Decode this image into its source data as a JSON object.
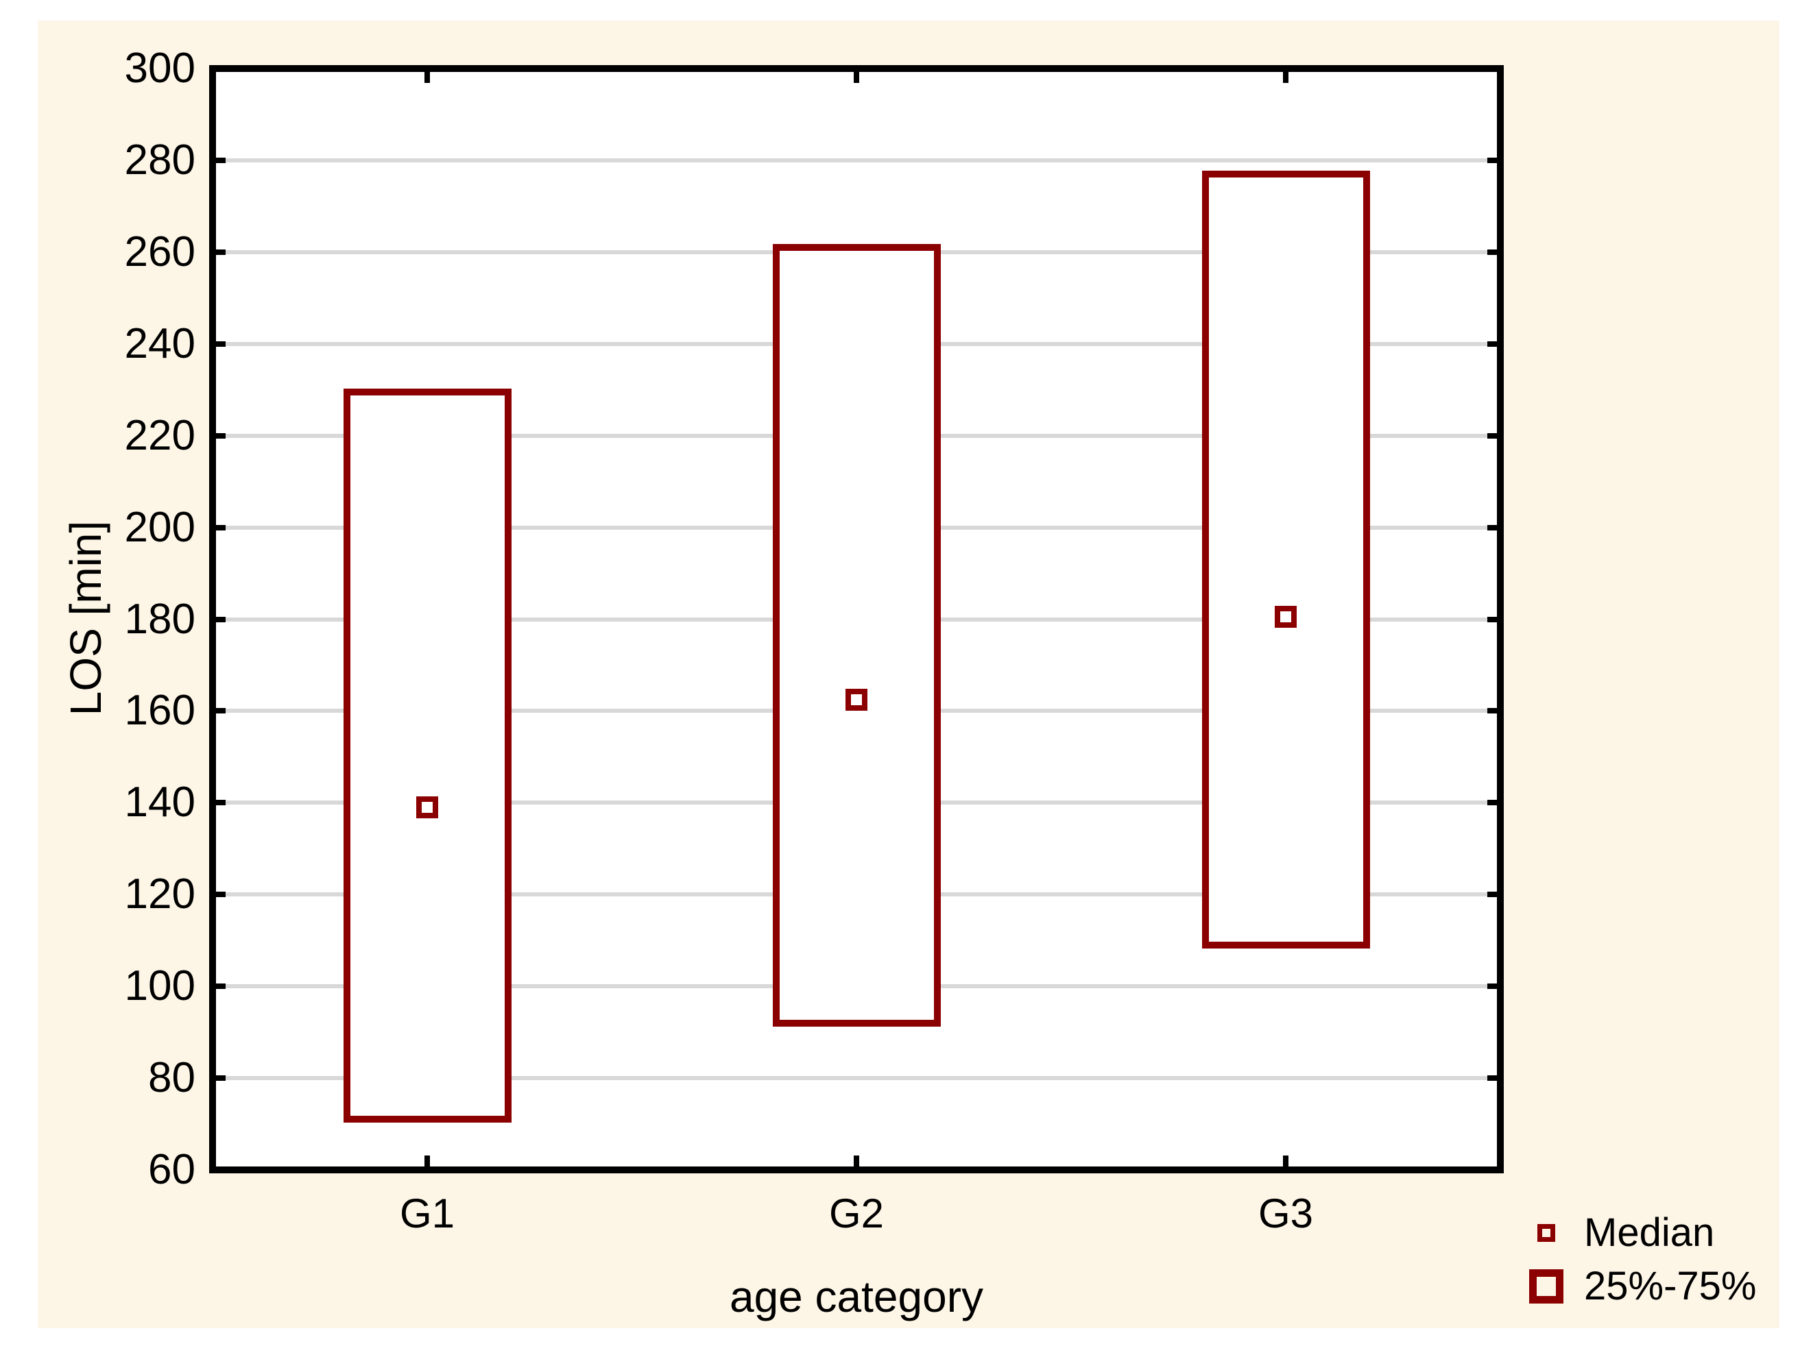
{
  "axes": {
    "ylabel": "LOS [min]",
    "xlabel": "age category"
  },
  "legend": {
    "items": [
      {
        "label": "Median",
        "marker": "small-open-square-icon"
      },
      {
        "label": "25%-75%",
        "marker": "large-open-square-icon"
      }
    ]
  },
  "chart_data": {
    "type": "box",
    "title": "",
    "xlabel": "age category",
    "ylabel": "LOS [min]",
    "categories": [
      "G1",
      "G2",
      "G3"
    ],
    "series": [
      {
        "name": "25%-75%",
        "role": "iqr-range-box",
        "q1": [
          71,
          92,
          109
        ],
        "q3": [
          229.5,
          261,
          277
        ]
      },
      {
        "name": "Median",
        "role": "median-point",
        "values": [
          139,
          162.5,
          180.5
        ]
      }
    ],
    "ylim": [
      60,
      300
    ],
    "ytick_step": 20,
    "yticks": [
      60,
      80,
      100,
      120,
      140,
      160,
      180,
      200,
      220,
      240,
      260,
      280,
      300
    ],
    "grid": "horizontal-only",
    "legend_position": "bottom-right",
    "legend_entries": [
      "Median",
      "25%-75%"
    ],
    "colors": {
      "box_outline": "#8B0000",
      "panel_background": "#FDF5E6",
      "plot_background": "#FFFFFF",
      "gridline": "#D8D8D8",
      "axis": "#000000",
      "text": "#000000"
    }
  }
}
